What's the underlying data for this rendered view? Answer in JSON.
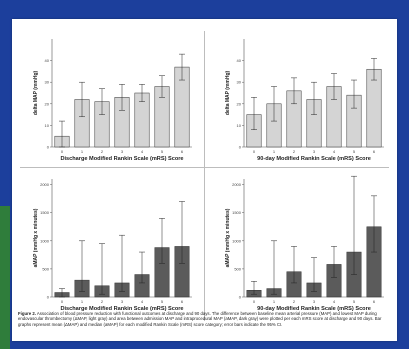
{
  "figure": {
    "caption_label": "Figure 2.",
    "caption_text": "Association of blood pressure reduction with functional outcomes at discharge and 90 days. The difference between baseline mean arterial pressure (MAP) and lowest MAP during endovascular thrombectomy (ΔMAP, light gray) and area between admission MAP and intraprocedural MAP (aMAP, dark gray) were plotted per each mRS score at discharge and 90 days. Bar graphs represent mean (ΔMAP) and median (aMAP) for each modified Rankin Scale (mRS) score category; error bars indicate the 95% CI."
  },
  "colors": {
    "background": "#1c3f9c",
    "green_accent": "#2f7d3b",
    "light_bar": "#d4d4d4",
    "dark_bar": "#5b5b5b"
  },
  "chart_data": [
    {
      "type": "bar",
      "xlabel": "Discharge Modified Rankin Scale (mRS) Score",
      "ylabel": "delta MAP (mmHg)",
      "categories": [
        "0",
        "1",
        "2",
        "3",
        "4",
        "5",
        "6"
      ],
      "values": [
        5,
        22,
        21,
        23,
        25,
        28,
        37
      ],
      "ci_low": [
        0,
        14,
        15,
        17,
        21,
        23,
        31
      ],
      "ci_high": [
        12,
        30,
        27,
        29,
        29,
        33,
        43
      ],
      "ylim": [
        0,
        50
      ],
      "yticks": [
        "0",
        "10",
        "20",
        "30",
        "40"
      ],
      "bar_color": "#d4d4d4"
    },
    {
      "type": "bar",
      "xlabel": "90-day Modified Rankin Scale (mRS) Score",
      "ylabel": "delta MAP (mmHg)",
      "categories": [
        "0",
        "1",
        "2",
        "3",
        "4",
        "5",
        "6"
      ],
      "values": [
        15,
        20,
        26,
        22,
        28,
        24,
        36
      ],
      "ci_low": [
        8,
        12,
        20,
        15,
        22,
        18,
        31
      ],
      "ci_high": [
        23,
        28,
        32,
        30,
        34,
        31,
        41
      ],
      "ylim": [
        0,
        50
      ],
      "yticks": [
        "0",
        "10",
        "20",
        "30",
        "40"
      ],
      "bar_color": "#d4d4d4"
    },
    {
      "type": "bar",
      "xlabel": "Discharge Modified Rankin Scale (mRS) Score",
      "ylabel": "aMAP (mmHg x minutes)",
      "categories": [
        "0",
        "1",
        "2",
        "3",
        "4",
        "5",
        "6"
      ],
      "values": [
        80,
        300,
        200,
        250,
        400,
        880,
        900
      ],
      "ci_low": [
        0,
        100,
        50,
        100,
        250,
        600,
        600
      ],
      "ci_high": [
        150,
        1000,
        950,
        1100,
        800,
        1400,
        1700
      ],
      "ylim": [
        0,
        2100
      ],
      "yticks": [
        "0",
        "500",
        "1000",
        "1500",
        "2000"
      ],
      "bar_color": "#5b5b5b"
    },
    {
      "type": "bar",
      "xlabel": "90-day Modified Rankin Scale (mRS) Score",
      "ylabel": "aMAP (mmHg x minutes)",
      "categories": [
        "0",
        "1",
        "2",
        "3",
        "4",
        "5",
        "6"
      ],
      "values": [
        120,
        150,
        450,
        250,
        580,
        800,
        1250
      ],
      "ci_low": [
        50,
        50,
        250,
        100,
        350,
        400,
        800
      ],
      "ci_high": [
        280,
        1000,
        900,
        700,
        900,
        2150,
        1800
      ],
      "ylim": [
        0,
        2100
      ],
      "yticks": [
        "0",
        "500",
        "1000",
        "1500",
        "2000"
      ],
      "bar_color": "#5b5b5b"
    }
  ]
}
